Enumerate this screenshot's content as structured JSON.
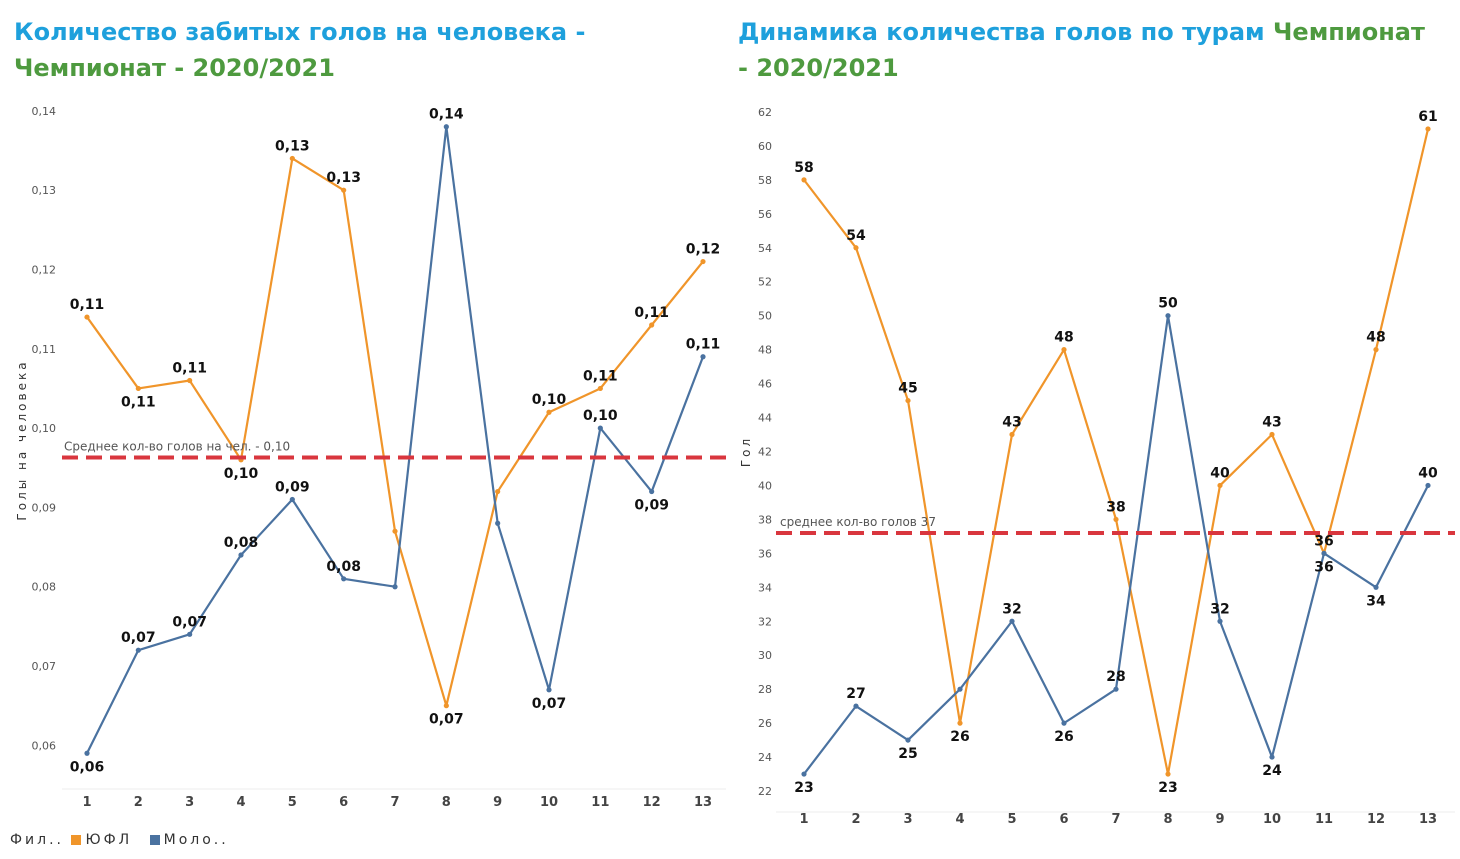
{
  "charts": {
    "left": {
      "title_part1": "Количество забитых голов на человека - ",
      "title_part2": "Чемпионат - 2020/2021"
    },
    "right": {
      "title_part1": "Динамика количества голов по турам ",
      "title_part2": "Чемпионат - 2020/2021"
    }
  },
  "legend": {
    "label": "Фил..",
    "items": [
      {
        "name": "ЮФЛ",
        "color": "#f0952a"
      },
      {
        "name": "Моло..",
        "color": "#4a72a0"
      }
    ]
  },
  "colors": {
    "orange": "#f0952a",
    "blue": "#4a72a0",
    "avg_line": "#d9363e"
  },
  "chart_data": [
    {
      "type": "line",
      "title": "Количество забитых голов на человека - Чемпионат - 2020/2021",
      "xlabel": "",
      "ylabel": "Голы на человека",
      "categories": [
        "1",
        "2",
        "3",
        "4",
        "5",
        "6",
        "7",
        "8",
        "9",
        "10",
        "11",
        "12",
        "13"
      ],
      "ylim": [
        0.055,
        0.142
      ],
      "yticks": [
        0.06,
        0.07,
        0.08,
        0.09,
        0.1,
        0.11,
        0.12,
        0.13,
        0.14
      ],
      "ytick_labels": [
        "0,06",
        "0,07",
        "0,08",
        "0,09",
        "0,10",
        "0,11",
        "0,12",
        "0,13",
        "0,14"
      ],
      "series": [
        {
          "name": "ЮФЛ",
          "color": "#f0952a",
          "values": [
            0.114,
            0.105,
            0.106,
            0.096,
            0.134,
            0.13,
            0.087,
            0.065,
            0.092,
            0.102,
            0.105,
            0.113,
            0.121
          ],
          "labels": [
            "0,11",
            "0,11",
            "0,11",
            "0,10",
            "0,13",
            "0,13",
            "",
            "0,07",
            "",
            "0,10",
            "0,11",
            "0,11",
            "0,12"
          ]
        },
        {
          "name": "Моло..",
          "color": "#4a72a0",
          "values": [
            0.059,
            0.072,
            0.074,
            0.084,
            0.091,
            0.081,
            0.08,
            0.138,
            0.088,
            0.067,
            0.1,
            0.092,
            0.109
          ],
          "labels": [
            "0,06",
            "0,07",
            "0,07",
            "0,08",
            "0,09",
            "0,08",
            "",
            "0,14",
            "",
            "0,07",
            "0,10",
            "0,09",
            "0,11"
          ]
        }
      ],
      "reference_line": {
        "value": 0.0963,
        "label": "Среднее кол-во голов на чел. - 0,10"
      }
    },
    {
      "type": "line",
      "title": "Динамика количества голов по турам Чемпионат - 2020/2021",
      "xlabel": "",
      "ylabel": "Гол",
      "categories": [
        "1",
        "2",
        "3",
        "4",
        "5",
        "6",
        "7",
        "8",
        "9",
        "10",
        "11",
        "12",
        "13"
      ],
      "ylim": [
        21,
        63
      ],
      "yticks": [
        22,
        24,
        26,
        28,
        30,
        32,
        34,
        36,
        38,
        40,
        42,
        44,
        46,
        48,
        50,
        52,
        54,
        56,
        58,
        60,
        62
      ],
      "ytick_labels": [
        "22",
        "24",
        "26",
        "28",
        "30",
        "32",
        "34",
        "36",
        "38",
        "40",
        "42",
        "44",
        "46",
        "48",
        "50",
        "52",
        "54",
        "56",
        "58",
        "60",
        "62"
      ],
      "series": [
        {
          "name": "ЮФЛ",
          "color": "#f0952a",
          "values": [
            58,
            54,
            45,
            26,
            43,
            48,
            38,
            23,
            40,
            43,
            36,
            48,
            61
          ],
          "labels": [
            "58",
            "54",
            "45",
            "26",
            "43",
            "48",
            "38",
            "23",
            "40",
            "43",
            "36",
            "48",
            "61"
          ]
        },
        {
          "name": "Моло..",
          "color": "#4a72a0",
          "values": [
            23,
            27,
            25,
            28,
            32,
            26,
            28,
            50,
            32,
            24,
            36,
            34,
            40
          ],
          "labels": [
            "23",
            "27",
            "25",
            "",
            "32",
            "26",
            "28",
            "50",
            "32",
            "24",
            "36",
            "34",
            "40"
          ]
        }
      ],
      "reference_line": {
        "value": 37.2,
        "label": "среднее кол-во голов 37"
      }
    }
  ]
}
